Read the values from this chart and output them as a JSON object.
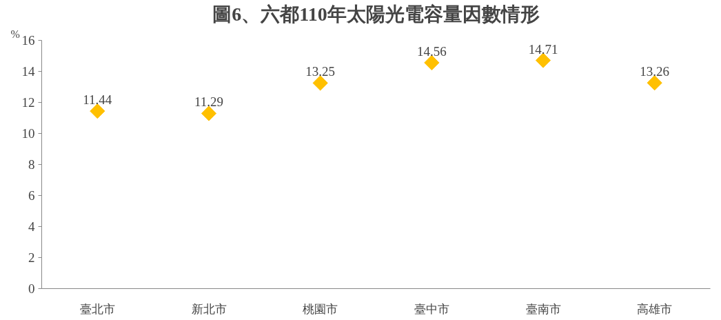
{
  "chart_data": {
    "type": "scatter",
    "title": "圖6、六都110年太陽光電容量因數情形",
    "ylabel": "%",
    "categories": [
      "臺北市",
      "新北市",
      "桃園市",
      "臺中市",
      "臺南市",
      "高雄市"
    ],
    "values": [
      11.44,
      11.29,
      13.25,
      14.56,
      14.71,
      13.26
    ],
    "color": "#ffc000",
    "marker": "diamond",
    "ylim": [
      0,
      16
    ],
    "yticks": [
      0,
      2,
      4,
      6,
      8,
      10,
      12,
      14,
      16
    ],
    "data_labels": true,
    "grid": false
  }
}
